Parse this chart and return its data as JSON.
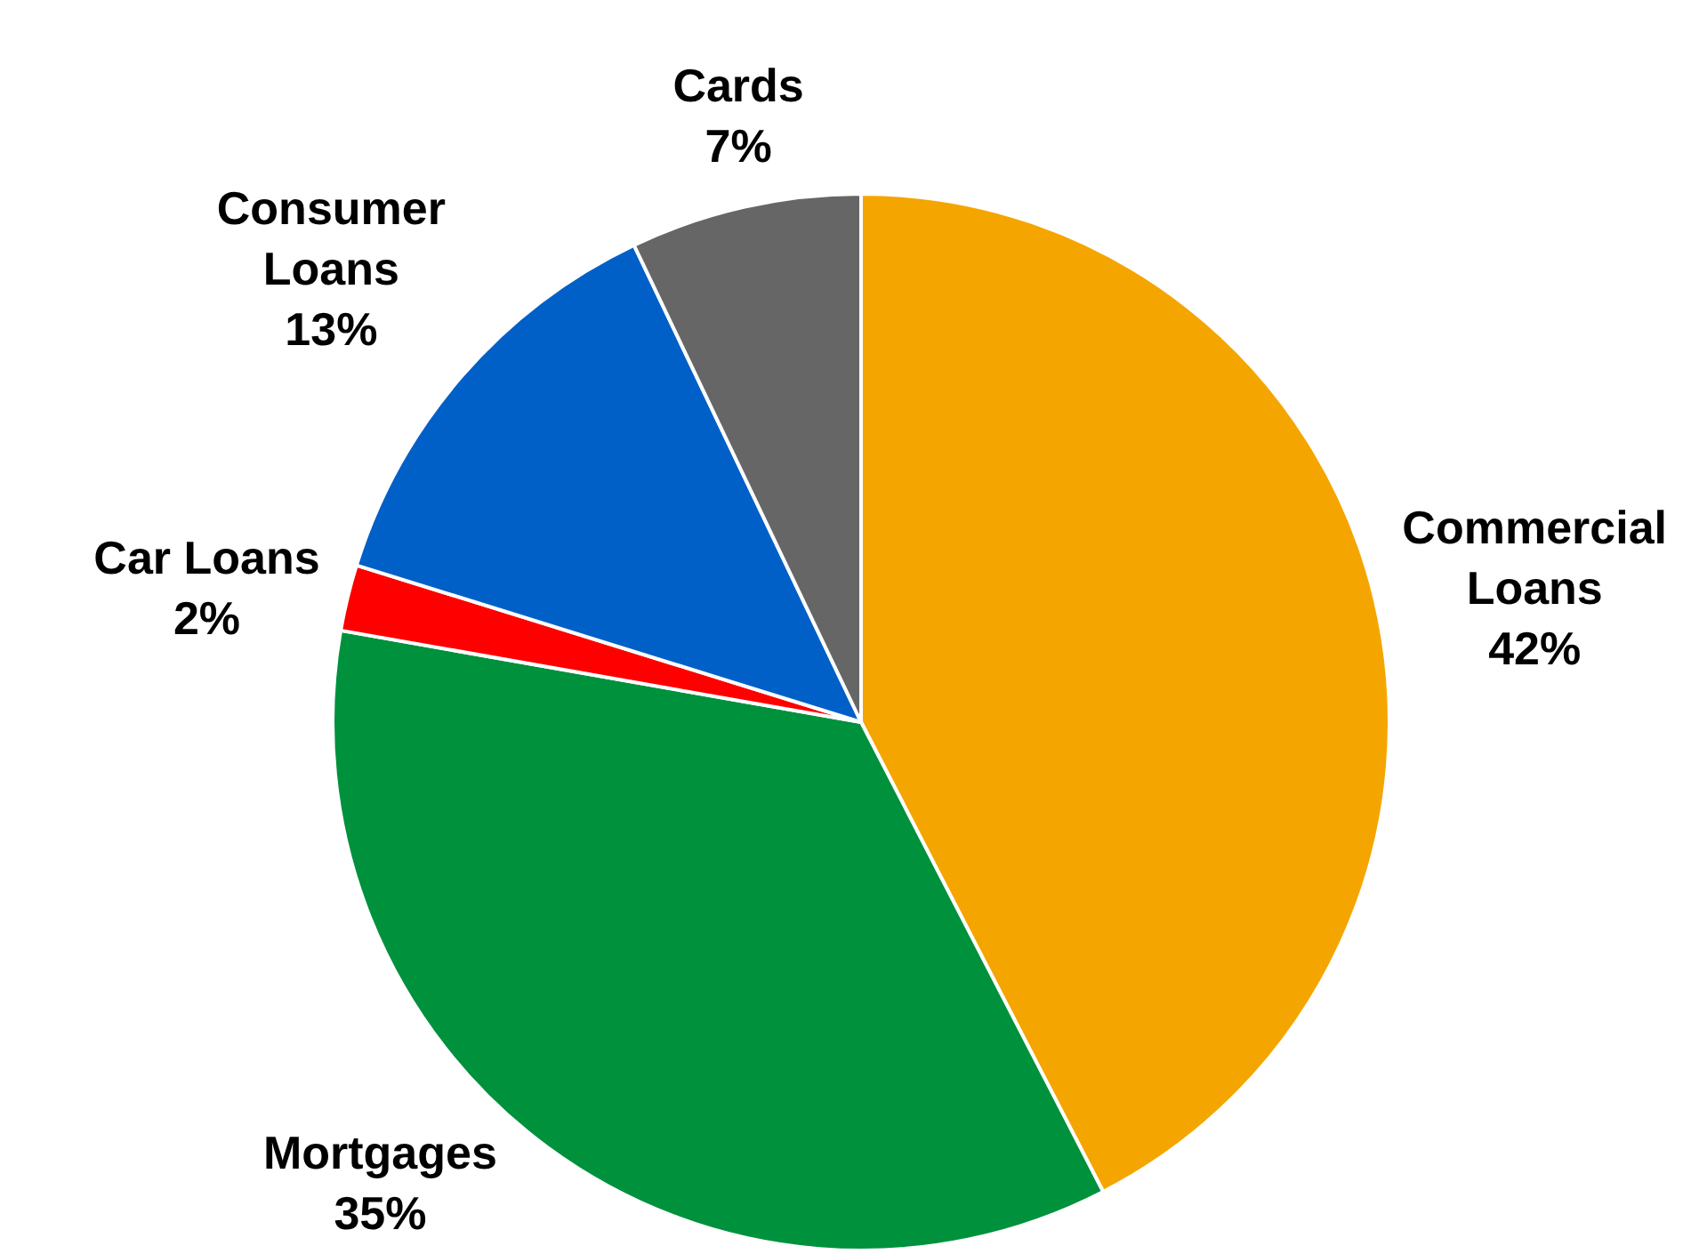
{
  "chart_data": {
    "type": "pie",
    "categories": [
      "Commercial Loans",
      "Mortgages",
      "Car Loans",
      "Consumer Loans",
      "Cards"
    ],
    "values": [
      42,
      35,
      2,
      13,
      7
    ],
    "colors": [
      "#f5a500",
      "#00913c",
      "#ff0000",
      "#0060c8",
      "#666666"
    ],
    "value_labels": [
      "42%",
      "35%",
      "2%",
      "13%",
      "7%"
    ],
    "legend": false
  }
}
